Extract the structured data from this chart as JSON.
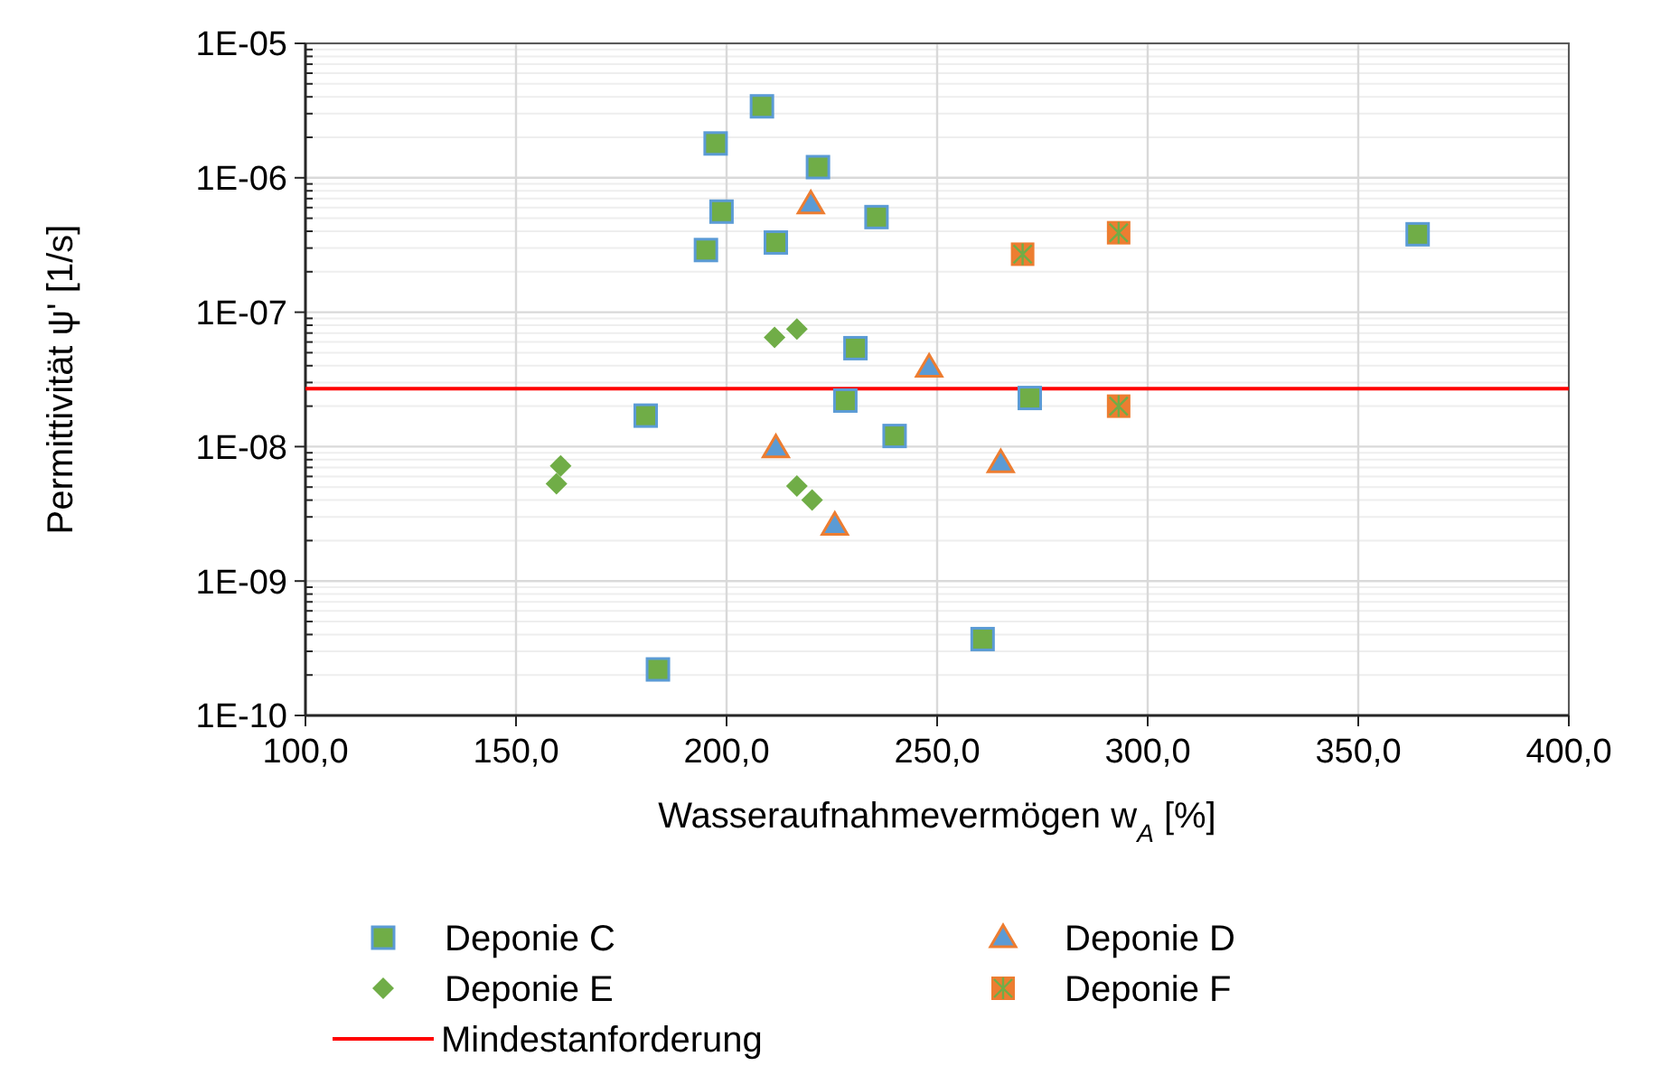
{
  "chart_data": {
    "type": "scatter",
    "xlabel": "Wasseraufnahmevermögen w$_{A}$ [%]",
    "ylabel": "Permittivität ψ' [1/s]",
    "xlim": [
      100,
      400
    ],
    "xticks": [
      {
        "value": 100,
        "label": "100,0"
      },
      {
        "value": 150,
        "label": "150,0"
      },
      {
        "value": 200,
        "label": "200,0"
      },
      {
        "value": 250,
        "label": "250,0"
      },
      {
        "value": 300,
        "label": "300,0"
      },
      {
        "value": 350,
        "label": "350,0"
      },
      {
        "value": 400,
        "label": "400,0"
      }
    ],
    "ylim": [
      1e-10,
      1e-05
    ],
    "yticks": [
      {
        "value": 1e-10,
        "label": "1E-10"
      },
      {
        "value": 1e-09,
        "label": "1E-09"
      },
      {
        "value": 1e-08,
        "label": "1E-08"
      },
      {
        "value": 1e-07,
        "label": "1E-07"
      },
      {
        "value": 1e-06,
        "label": "1E-06"
      },
      {
        "value": 1e-05,
        "label": "1E-05"
      }
    ],
    "log": "y",
    "grid": true,
    "legend": "bottom",
    "series": [
      {
        "name": "Deponie C",
        "color": "#70ad47",
        "marker": "square",
        "x": [
          208.4,
          197.4,
          221.7,
          198.8,
          235.6,
          195.1,
          211.7,
          230.6,
          228.2,
          239.9,
          180.8,
          183.7,
          260.8,
          272,
          364.1
        ],
        "values": [
          3.4e-06,
          1.8e-06,
          1.2e-06,
          5.6e-07,
          5.1e-07,
          2.9e-07,
          3.3e-07,
          5.4e-08,
          2.2e-08,
          1.2e-08,
          1.7e-08,
          2.2e-10,
          3.7e-10,
          2.3e-08,
          3.8e-07
        ]
      },
      {
        "name": "Deponie D",
        "color": "#5b9bd5",
        "marker": "triangle",
        "x": [
          220,
          248.1,
          211.7,
          265.1,
          225.7
        ],
        "values": [
          6.4e-07,
          3.9e-08,
          9.8e-09,
          7.6e-09,
          2.6e-09
        ]
      },
      {
        "name": "Deponie E",
        "color": "#70ad47",
        "marker": "diamond",
        "x": [
          211.4,
          216.7,
          160.6,
          159.6,
          216.7,
          220.3
        ],
        "values": [
          6.5e-08,
          7.5e-08,
          7.2e-09,
          5.3e-09,
          5.1e-09,
          4e-09
        ]
      },
      {
        "name": "Deponie F",
        "color": "#ed7d31",
        "marker": "square",
        "x": [
          270.3,
          293.1,
          293.1
        ],
        "values": [
          2.7e-07,
          3.9e-07,
          2e-08
        ]
      }
    ],
    "ref_lines": [
      {
        "axis": "y",
        "value": 2.7e-08,
        "label": "Mindestanforderung",
        "color": "#ff0000"
      }
    ]
  }
}
